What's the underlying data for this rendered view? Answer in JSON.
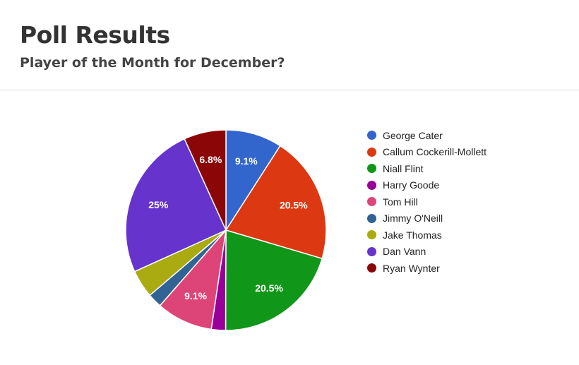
{
  "header": {
    "title": "Poll Results",
    "subtitle": "Player of the Month for December?"
  },
  "chart_data": {
    "type": "pie",
    "slices": [
      {
        "label": "George Cater",
        "value": 9.1,
        "display": "9.1%",
        "color": "#3366cc"
      },
      {
        "label": "Callum Cockerill-Mollett",
        "value": 20.5,
        "display": "20.5%",
        "color": "#dc3912"
      },
      {
        "label": "Niall Flint",
        "value": 20.5,
        "display": "20.5%",
        "color": "#109618"
      },
      {
        "label": "Harry Goode",
        "value": 2.3,
        "display": "",
        "color": "#990099"
      },
      {
        "label": "Tom Hill",
        "value": 9.1,
        "display": "9.1%",
        "color": "#dd4477"
      },
      {
        "label": "Jimmy O'Neill",
        "value": 2.3,
        "display": "",
        "color": "#316395"
      },
      {
        "label": "Jake Thomas",
        "value": 4.5,
        "display": "",
        "color": "#aaaa11"
      },
      {
        "label": "Dan Vann",
        "value": 25,
        "display": "25%",
        "color": "#6633cc"
      },
      {
        "label": "Ryan Wynter",
        "value": 6.8,
        "display": "6.8%",
        "color": "#8b0707"
      }
    ],
    "legend_position": "right"
  }
}
